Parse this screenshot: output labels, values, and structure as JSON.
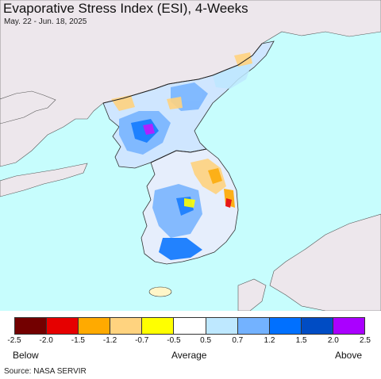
{
  "title": "Evaporative Stress Index (ESI), 4-Weeks",
  "subtitle": "May. 22 - Jun. 18, 2025",
  "legend": {
    "colors": [
      "#730000",
      "#e60000",
      "#ffaa00",
      "#ffd37f",
      "#ffff00",
      "#ffffff",
      "#bee8ff",
      "#73b2ff",
      "#0070ff",
      "#004cc4",
      "#aa00ff"
    ],
    "ticks": [
      "-2.5",
      "-2.0",
      "-1.5",
      "-1.2",
      "-0.7",
      "-0.5",
      "0.5",
      "0.7",
      "1.2",
      "1.5",
      "2.0",
      "2.5"
    ],
    "below_label": "Below",
    "average_label": "Average",
    "above_label": "Above"
  },
  "source": "Source: NASA SERVIR",
  "map_colors": {
    "sea": "#c7fdfd",
    "foreign_land": "#ede7ec",
    "border": "#333333"
  }
}
